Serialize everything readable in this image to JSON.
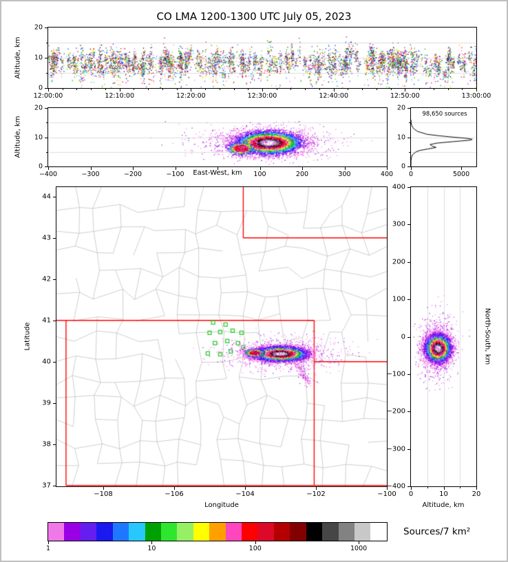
{
  "figure": {
    "background": "#ffffff",
    "frame": "#bfbfbf"
  },
  "chart_data": {
    "type": "scatter",
    "title": "CO LMA 1200-1300 UTC July 05, 2023",
    "panels": {
      "time_altitude": {
        "ylabel": "Altitude, km",
        "ylim": [
          0,
          20
        ],
        "ytick_values": [
          0,
          10,
          20
        ],
        "ytick_labels": [
          "0",
          "10",
          "20"
        ],
        "xtick_values": [
          0,
          600,
          1200,
          1800,
          2400,
          3000,
          3600
        ],
        "xtick_labels": [
          "12:00:00",
          "12:10:00",
          "12:20:00",
          "12:30:00",
          "12:40:00",
          "12:50:00",
          "13:00:00"
        ],
        "points": {
          "n_flashes": 300,
          "alt_mean_km": 8.6,
          "alt_sd_km": 1.9,
          "alt_range_km": [
            0.3,
            17.5
          ]
        }
      },
      "ew_altitude": {
        "xlabel": "East-West, km",
        "xlim": [
          -400,
          400
        ],
        "xtick_values": [
          -400,
          -300,
          -200,
          -100,
          0,
          100,
          200,
          300,
          400
        ],
        "xtick_labels": [
          "−400",
          "−300",
          "−200",
          "−100",
          "",
          "100",
          "200",
          "300",
          "400"
        ],
        "ylabel": "Altitude, km",
        "ylim": [
          0,
          20
        ],
        "ytick_values": [
          0,
          10,
          20
        ],
        "ytick_labels": [
          "0",
          "10",
          "20"
        ],
        "cluster": {
          "ew_center_km": 120,
          "ew_sd_km": 38,
          "alt_center_km": 8.2,
          "alt_sd_km": 1.9,
          "west_tip": {
            "ew_center_km": 55,
            "ew_sd_km": 16,
            "alt_center_km": 6.3,
            "alt_sd_km": 1.1
          }
        }
      },
      "altitude_histogram": {
        "annotation": "98,650 sources",
        "xlim": [
          0,
          6500
        ],
        "xtick_values": [
          0,
          5000
        ],
        "xtick_labels": [
          "0",
          "5000"
        ],
        "ytick_values": [
          0,
          10,
          20
        ],
        "ytick_labels": [
          "0",
          "10",
          "20"
        ],
        "profile_alt_km": [
          0,
          2,
          3,
          4,
          5,
          5.5,
          6,
          6.5,
          7,
          7.5,
          8,
          8.5,
          9,
          9.3,
          9.6,
          10,
          10.5,
          11,
          12,
          13,
          14,
          15,
          16
        ],
        "profile_counts": [
          0,
          10,
          40,
          150,
          500,
          900,
          1700,
          2500,
          2100,
          1900,
          2600,
          4200,
          5900,
          6100,
          5600,
          4300,
          2800,
          1600,
          650,
          250,
          80,
          15,
          0
        ]
      },
      "map": {
        "xlabel": "Longitude",
        "ylabel": "Latitude",
        "xlim": [
          -109.32,
          -100
        ],
        "ylim": [
          36.98,
          44.23
        ],
        "xtick_values": [
          -108,
          -106,
          -104,
          -102,
          -100
        ],
        "xtick_labels": [
          "−108",
          "−106",
          "−104",
          "−102",
          "−100"
        ],
        "ytick_values": [
          37,
          38,
          39,
          40,
          41,
          42,
          43,
          44
        ],
        "ytick_labels": [
          "37",
          "38",
          "39",
          "40",
          "41",
          "42",
          "43",
          "44"
        ],
        "county_color": "#b8b8b8",
        "state_border_color": "#ff0000",
        "state_borders": [
          [
            [
              -109.05,
              37
            ],
            [
              -109.05,
              41
            ]
          ],
          [
            [
              -109.32,
              41
            ],
            [
              -102.05,
              41
            ]
          ],
          [
            [
              -102.05,
              41
            ],
            [
              -102.05,
              37
            ]
          ],
          [
            [
              -109.05,
              37
            ],
            [
              -100,
              37
            ]
          ],
          [
            [
              -104.05,
              44.23
            ],
            [
              -104.05,
              43
            ]
          ],
          [
            [
              -104.05,
              43
            ],
            [
              -100,
              43
            ]
          ],
          [
            [
              -102.05,
              40
            ],
            [
              -100,
              40
            ]
          ]
        ],
        "station_color": "#30cc30",
        "stations": [
          [
            -104.9,
            40.95
          ],
          [
            -104.55,
            40.9
          ],
          [
            -105.0,
            40.7
          ],
          [
            -104.7,
            40.72
          ],
          [
            -104.35,
            40.75
          ],
          [
            -104.1,
            40.7
          ],
          [
            -104.85,
            40.45
          ],
          [
            -104.5,
            40.5
          ],
          [
            -104.2,
            40.45
          ],
          [
            -105.05,
            40.2
          ],
          [
            -104.7,
            40.18
          ],
          [
            -104.4,
            40.25
          ],
          [
            -104.05,
            40.35
          ]
        ],
        "cluster": {
          "lon_center": -103.02,
          "lon_sd": 0.36,
          "lat_center": 40.2,
          "lat_sd": 0.085,
          "tail_from": [
            -102.58,
            39.98
          ],
          "tail_to": [
            -102.2,
            39.48
          ]
        }
      },
      "ns_altitude": {
        "xlabel": "Altitude, km",
        "ylabel": "North-South, km",
        "xlim": [
          0,
          20
        ],
        "xtick_values": [
          0,
          10,
          20
        ],
        "xtick_labels": [
          "0",
          "10",
          "20"
        ],
        "ylim": [
          -400,
          400
        ],
        "ytick_values": [
          400,
          300,
          200,
          100,
          0,
          -100,
          -200,
          -300,
          -400
        ],
        "ytick_labels": [
          "400",
          "300",
          "200",
          "100",
          "0",
          "−100",
          "−200",
          "−300",
          "−400"
        ],
        "cluster": {
          "ns_center_km": -30,
          "ns_sd_km": 18,
          "alt_center_km": 8.2,
          "alt_sd_km": 1.9
        }
      }
    },
    "colorbar": {
      "label": "Sources/7 km²",
      "scale": "log",
      "tick_values": [
        1,
        10,
        100,
        1000
      ],
      "tick_labels": [
        "1",
        "10",
        "100",
        "1000"
      ],
      "colors": [
        "#f178e8",
        "#9a00e6",
        "#641ef0",
        "#1919f0",
        "#1e78ff",
        "#28c8ff",
        "#00a000",
        "#2ee62e",
        "#96f064",
        "#ffff00",
        "#ffa000",
        "#ff46be",
        "#ff0000",
        "#dc0a28",
        "#b40000",
        "#820000",
        "#000000",
        "#464646",
        "#828282",
        "#c8c8c8",
        "#ffffff"
      ]
    }
  }
}
